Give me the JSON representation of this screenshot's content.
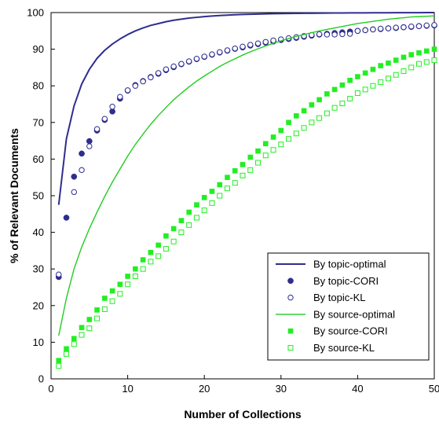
{
  "chart_data": {
    "type": "scatter",
    "title": "",
    "xlabel": "Number of Collections",
    "ylabel": "% of Relevant Documents",
    "xlim": [
      0,
      50
    ],
    "ylim": [
      0,
      100
    ],
    "xticks": [
      0,
      10,
      20,
      30,
      40,
      50
    ],
    "yticks": [
      0,
      10,
      20,
      30,
      40,
      50,
      60,
      70,
      80,
      90,
      100
    ],
    "grid": false,
    "legend_position": "bottom-right",
    "series": [
      {
        "name": "By topic-optimal",
        "style": "line",
        "color": "#2e2e8f",
        "x": [
          1,
          2,
          3,
          4,
          5,
          6,
          7,
          8,
          9,
          10,
          11,
          12,
          13,
          14,
          15,
          16,
          17,
          18,
          19,
          20,
          21,
          22,
          23,
          24,
          25,
          26,
          27,
          28,
          29,
          30,
          31,
          32,
          33,
          34,
          35,
          36,
          37,
          38,
          39,
          40,
          41,
          42,
          43,
          44,
          45,
          46,
          47,
          48,
          49,
          50
        ],
        "values": [
          47.5,
          65.5,
          74.5,
          80.5,
          84.5,
          87.5,
          89.7,
          91.4,
          92.8,
          94.0,
          95.0,
          95.8,
          96.5,
          97.0,
          97.5,
          97.9,
          98.2,
          98.5,
          98.7,
          98.9,
          99.05,
          99.2,
          99.3,
          99.4,
          99.5,
          99.55,
          99.6,
          99.65,
          99.7,
          99.72,
          99.75,
          99.78,
          99.8,
          99.82,
          99.84,
          99.86,
          99.88,
          99.9,
          99.91,
          99.92,
          99.93,
          99.94,
          99.95,
          99.96,
          99.97,
          99.97,
          99.98,
          99.98,
          99.99,
          100.0
        ]
      },
      {
        "name": "By topic-CORI",
        "style": "marker",
        "marker": "filled-circle",
        "color": "#2e2e8f",
        "x": [
          1,
          2,
          3,
          4,
          5,
          6,
          7,
          8,
          9,
          10,
          11,
          12,
          13,
          14,
          15,
          16,
          17,
          18,
          19,
          20,
          21,
          22,
          23,
          24,
          25,
          26,
          27,
          28,
          29,
          30,
          31,
          32,
          33,
          34,
          35,
          36,
          37,
          38,
          39,
          40,
          41,
          42,
          43,
          44,
          45,
          46,
          47,
          48,
          49,
          50
        ],
        "values": [
          27.8,
          44.0,
          55.2,
          61.5,
          64.9,
          67.8,
          70.7,
          73.0,
          76.5,
          78.7,
          80.2,
          81.3,
          82.4,
          83.3,
          84.3,
          85.1,
          85.9,
          86.6,
          87.3,
          87.9,
          88.5,
          89.1,
          89.6,
          90.1,
          90.5,
          91.0,
          91.4,
          91.8,
          92.1,
          92.5,
          92.8,
          93.1,
          93.4,
          93.7,
          94.0,
          94.2,
          94.4,
          94.6,
          94.8,
          95.0,
          95.2,
          95.4,
          95.5,
          95.7,
          95.8,
          96.0,
          96.1,
          96.3,
          96.4,
          96.5
        ]
      },
      {
        "name": "By topic-KL",
        "style": "marker",
        "marker": "hollow-circle",
        "color": "#2e2e8f",
        "x": [
          1,
          3,
          4,
          5,
          6,
          7,
          8,
          9,
          10,
          11,
          12,
          13,
          14,
          15,
          16,
          17,
          18,
          19,
          20,
          21,
          22,
          23,
          24,
          25,
          26,
          27,
          28,
          29,
          30,
          31,
          32,
          33,
          34,
          35,
          36,
          37,
          38,
          39,
          40,
          41,
          42,
          43,
          44,
          45,
          46,
          47,
          48,
          49,
          50
        ],
        "values": [
          28.5,
          51.0,
          57.0,
          63.5,
          68.2,
          71.0,
          74.3,
          77.0,
          78.8,
          80.0,
          81.2,
          82.3,
          83.5,
          84.5,
          85.3,
          86.0,
          86.7,
          87.4,
          88.0,
          88.6,
          89.2,
          89.7,
          90.2,
          90.7,
          91.2,
          91.6,
          92.0,
          92.4,
          92.7,
          93.0,
          93.3,
          93.6,
          93.9,
          94.1,
          94.0,
          94.0,
          94.1,
          94.2,
          95.0,
          95.2,
          95.4,
          95.6,
          95.7,
          95.9,
          96.0,
          96.2,
          96.3,
          96.5,
          96.6
        ]
      },
      {
        "name": "By source-optimal",
        "style": "line",
        "color": "#22cc22",
        "x": [
          1,
          2,
          3,
          4,
          5,
          6,
          7,
          8,
          9,
          10,
          11,
          12,
          13,
          14,
          15,
          16,
          17,
          18,
          19,
          20,
          21,
          22,
          23,
          24,
          25,
          26,
          27,
          28,
          29,
          30,
          31,
          32,
          33,
          34,
          35,
          36,
          37,
          38,
          39,
          40,
          41,
          42,
          43,
          44,
          45,
          46,
          47,
          48,
          49,
          50
        ],
        "values": [
          11.8,
          22.0,
          30.0,
          36.0,
          41.0,
          45.5,
          49.8,
          53.7,
          57.3,
          60.8,
          64.0,
          66.8,
          69.5,
          71.9,
          74.1,
          76.2,
          78.0,
          79.7,
          81.3,
          82.7,
          84.0,
          85.3,
          86.4,
          87.4,
          88.4,
          89.3,
          90.1,
          90.9,
          91.6,
          92.3,
          92.9,
          93.5,
          94.0,
          94.5,
          95.0,
          95.4,
          95.8,
          96.2,
          96.6,
          97.0,
          97.3,
          97.6,
          97.9,
          98.2,
          98.4,
          98.6,
          98.8,
          98.9,
          99.0,
          99.1
        ]
      },
      {
        "name": "By source-CORI",
        "style": "marker",
        "marker": "filled-square",
        "color": "#22ee22",
        "x": [
          1,
          2,
          3,
          4,
          5,
          6,
          7,
          8,
          9,
          10,
          11,
          12,
          13,
          14,
          15,
          16,
          17,
          18,
          19,
          20,
          21,
          22,
          23,
          24,
          25,
          26,
          27,
          28,
          29,
          30,
          31,
          32,
          33,
          34,
          35,
          36,
          37,
          38,
          39,
          40,
          41,
          42,
          43,
          44,
          45,
          46,
          47,
          48,
          49,
          50
        ],
        "values": [
          5.0,
          8.2,
          11.0,
          14.0,
          16.2,
          18.8,
          22.0,
          24.0,
          25.8,
          28.0,
          30.0,
          32.5,
          34.5,
          36.5,
          39.0,
          41.0,
          43.2,
          45.5,
          47.5,
          49.5,
          51.2,
          53.0,
          55.0,
          56.8,
          58.5,
          60.5,
          62.2,
          64.2,
          66.0,
          67.8,
          70.0,
          71.8,
          73.2,
          74.8,
          76.2,
          77.8,
          79.0,
          80.2,
          81.5,
          82.5,
          83.5,
          84.5,
          85.5,
          86.2,
          87.0,
          87.8,
          88.5,
          89.0,
          89.5,
          90.0
        ]
      },
      {
        "name": "By source-KL",
        "style": "marker",
        "marker": "hollow-square",
        "color": "#22ee22",
        "x": [
          1,
          2,
          3,
          4,
          5,
          6,
          7,
          8,
          9,
          10,
          11,
          12,
          13,
          14,
          15,
          16,
          17,
          18,
          19,
          20,
          21,
          22,
          23,
          24,
          25,
          26,
          27,
          28,
          29,
          30,
          31,
          32,
          33,
          34,
          35,
          36,
          37,
          38,
          39,
          40,
          41,
          42,
          43,
          44,
          45,
          46,
          47,
          48,
          49,
          50
        ],
        "values": [
          3.5,
          6.8,
          9.5,
          12.0,
          13.8,
          16.5,
          19.0,
          21.2,
          23.2,
          25.8,
          28.0,
          30.0,
          32.0,
          33.5,
          35.5,
          37.5,
          40.0,
          42.0,
          44.0,
          46.0,
          48.0,
          50.0,
          52.0,
          53.5,
          55.5,
          57.0,
          59.0,
          61.0,
          62.5,
          64.0,
          65.5,
          67.0,
          68.5,
          70.0,
          71.2,
          72.5,
          74.0,
          75.2,
          76.5,
          78.0,
          79.0,
          80.0,
          81.0,
          82.0,
          83.0,
          84.0,
          85.0,
          86.0,
          86.5,
          87.0
        ]
      }
    ]
  }
}
